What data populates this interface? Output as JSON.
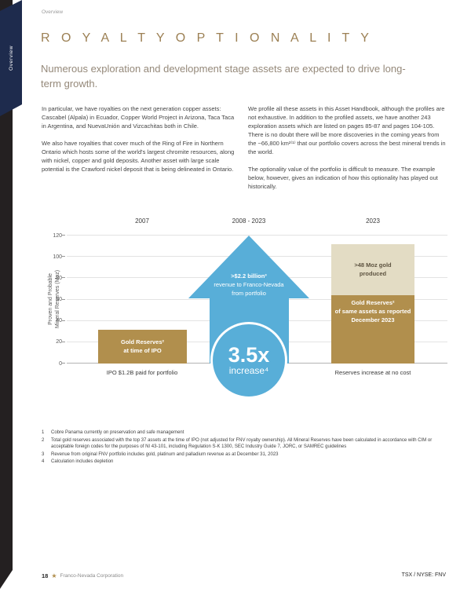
{
  "theme": {
    "navy": "#1e2b4d",
    "black_band": "#242021",
    "accent_gold": "#9c8054",
    "subtitle_taupe": "#95897a",
    "bar_gold": "#b18f4d",
    "bar_beige": "#e3dcc4",
    "arrow_blue": "#58aed8"
  },
  "sidebar": {
    "tab_label": "Overview"
  },
  "header": {
    "breadcrumb": "Overview",
    "title": "R O Y A L T Y   O P T I O N A L I T Y",
    "subtitle": "Numerous exploration and development stage assets are expected to drive long-term growth."
  },
  "body": {
    "left": [
      "In particular, we have royalties on the next generation copper assets: Cascabel (Alpala) in Ecuador, Copper World Project in Arizona, Taca Taca in Argentina, and NuevaUnión and Vizcachitas both in Chile.",
      "We also have royalties that cover much of the Ring of Fire in Northern Ontario which hosts some of the world's largest chromite resources, along with nickel, copper and gold deposits. Another asset with large scale potential is the Crawford nickel deposit that is being delineated in Ontario."
    ],
    "right": [
      "We profile all these assets in this Asset Handbook, although the profiles are not exhaustive. In addition to the profiled assets, we have another 243 exploration assets which are listed on pages 85-87 and pages 104-105. There is no doubt there will be more discoveries in the coming years from the ~66,800 km²⁽¹⁾ that our portfolio covers across the best mineral trends in the world.",
      "The optionality value of the portfolio is difficult to measure. The example below, however, gives an indication of how this optionality has played out historically."
    ]
  },
  "chart_data": {
    "type": "bar",
    "title": "",
    "ylabel": "Proven and Probable\nMineral Reserves (Moz)",
    "ylim": [
      0,
      120
    ],
    "yticks": [
      0,
      20,
      40,
      60,
      80,
      100,
      120
    ],
    "grid": "horizontal",
    "columns": [
      {
        "label": "2007",
        "caption": "IPO $1.2B paid for portfolio"
      },
      {
        "label": "2008 - 2023",
        "caption": ""
      },
      {
        "label": "2023",
        "caption": "Reserves increase at no cost"
      }
    ],
    "bars": {
      "ipo": {
        "column": "2007",
        "from": 0,
        "to": 32,
        "color": "#b18f4d",
        "label": "Gold Reserves²\nat time of IPO"
      },
      "produced": {
        "column": "2023",
        "from": 64,
        "to": 112,
        "color": "#e3dcc4",
        "label": ">48 Moz gold\nproduced"
      },
      "reserves2023": {
        "column": "2023",
        "from": 0,
        "to": 64,
        "color": "#b18f4d",
        "label": "Gold Reserves²\nof same assets as reported\nDecember 2023"
      }
    },
    "arrow": {
      "column": "2008 - 2023",
      "peak": 120,
      "color": "#58aed8",
      "headline": ">$2.2 billion³",
      "sublines": "revenue to Franco-Nevada\nfrom portfolio"
    },
    "badge": {
      "value": "3.5x",
      "label": "increase⁴"
    }
  },
  "footnotes": [
    {
      "num": "1",
      "text": "Cobre Panama currently on preservation and safe management"
    },
    {
      "num": "2",
      "text": "Total gold reserves associated with the top 37 assets at the time of IPO (not adjusted for FNV royalty ownership). All Mineral Reserves have been calculated in accordance with CIM or acceptable foreign codes for the purposes of NI 43-101, including Regulation S-K 1300, SEC Industry Guide 7, JORC, or SAMREC guidelines"
    },
    {
      "num": "3",
      "text": "Revenue from original FNV portfolio includes gold, platinum and palladium revenue as at December 31, 2023"
    },
    {
      "num": "4",
      "text": "Calculation includes depletion"
    }
  ],
  "footer": {
    "page_number": "18",
    "company": "Franco-Nevada Corporation",
    "ticker": "TSX / NYSE: FNV"
  }
}
